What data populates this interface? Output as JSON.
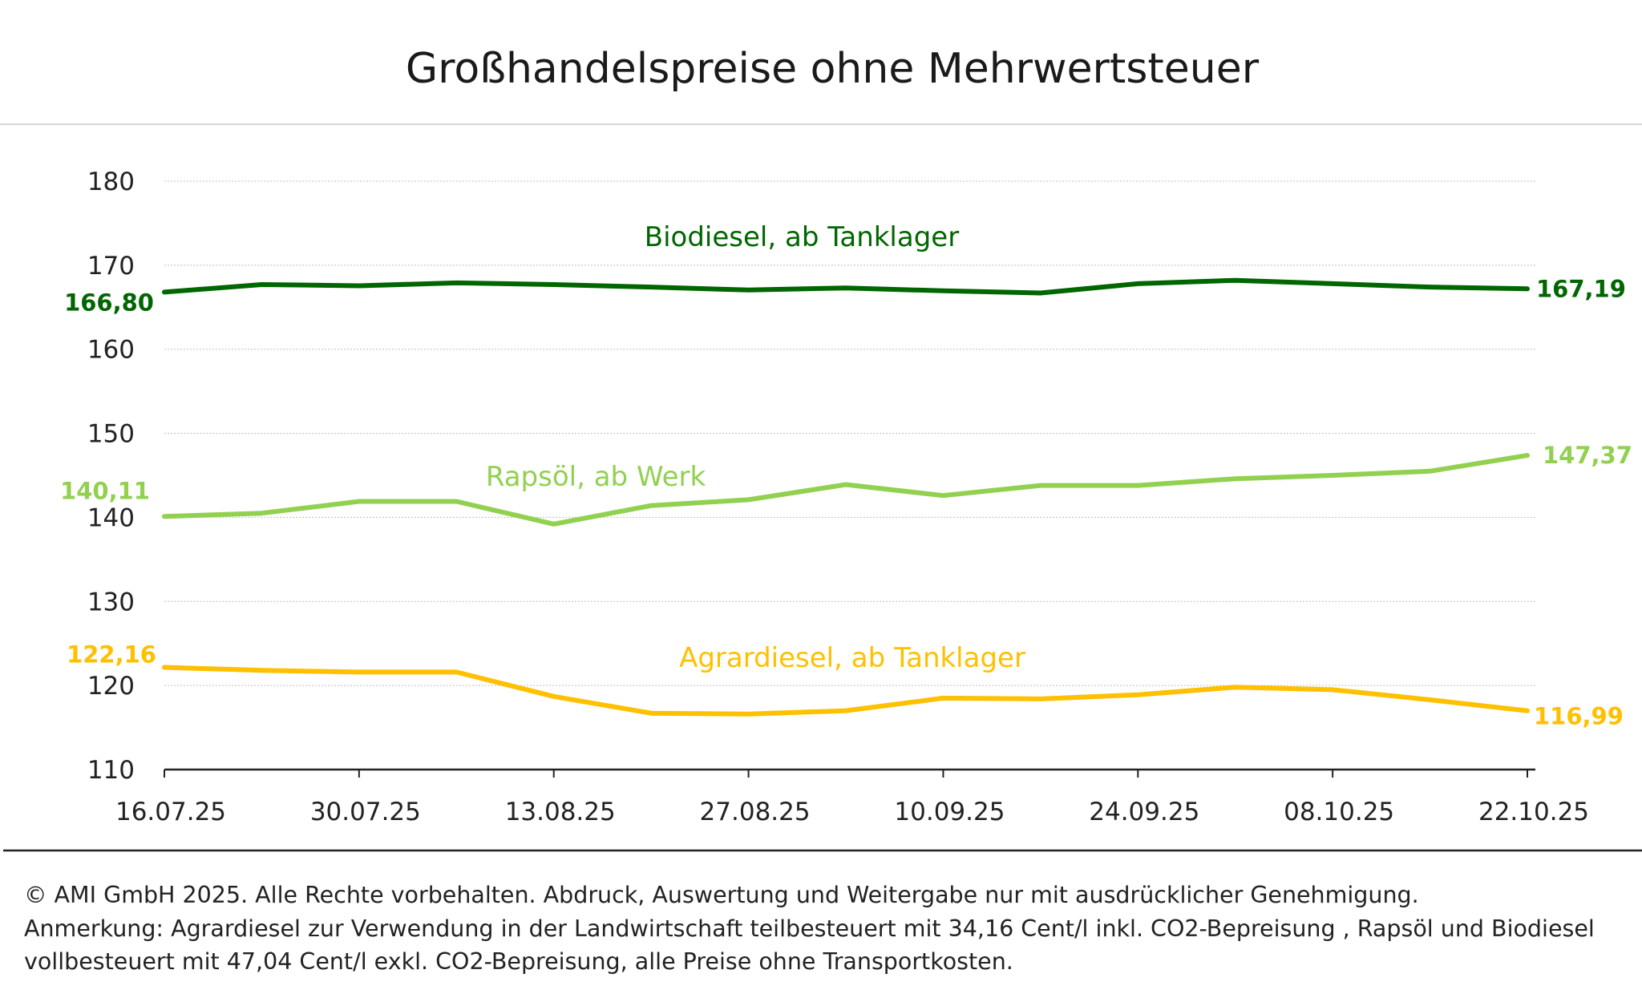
{
  "chart_data": {
    "type": "line",
    "title": "Großhandelspreise ohne Mehrwertsteuer",
    "xlabel": "",
    "ylabel": "",
    "ylim": [
      110,
      180
    ],
    "yticks": [
      "110",
      "120",
      "130",
      "140",
      "150",
      "160",
      "170",
      "180"
    ],
    "grid": true,
    "x": [
      "16.07.25",
      "23.07.25",
      "30.07.25",
      "06.08.25",
      "13.08.25",
      "20.08.25",
      "27.08.25",
      "03.09.25",
      "10.09.25",
      "17.09.25",
      "24.09.25",
      "01.10.25",
      "08.10.25",
      "15.10.25",
      "22.10.25"
    ],
    "xtick_labels": [
      "16.07.25",
      "30.07.25",
      "13.08.25",
      "27.08.25",
      "10.09.25",
      "24.09.25",
      "08.10.25",
      "22.10.25"
    ],
    "series": [
      {
        "name": "Biodiesel, ab Tanklager",
        "color": "#006600",
        "start_label": "166,80",
        "end_label": "167,19",
        "values": [
          166.8,
          167.7,
          167.55,
          167.9,
          167.7,
          167.4,
          167.05,
          167.3,
          166.95,
          166.7,
          167.8,
          168.2,
          167.8,
          167.4,
          167.19
        ]
      },
      {
        "name": "Rapsöl, ab Werk",
        "color": "#92d050",
        "start_label": "140,11",
        "end_label": "147,37",
        "values": [
          140.11,
          140.5,
          141.9,
          141.9,
          139.2,
          141.4,
          142.1,
          143.9,
          142.6,
          143.8,
          143.8,
          144.6,
          145.0,
          145.5,
          147.37
        ]
      },
      {
        "name": "Agrardiesel, ab Tanklager",
        "color": "#ffc000",
        "start_label": "122,16",
        "end_label": "116,99",
        "values": [
          122.16,
          121.8,
          121.6,
          121.6,
          118.7,
          116.7,
          116.6,
          117.0,
          118.5,
          118.4,
          118.9,
          119.8,
          119.5,
          118.3,
          116.99
        ]
      }
    ]
  },
  "footnote": {
    "line1": "© AMI GmbH 2025.  Alle Rechte vorbehalten.  Abdruck, Auswertung und Weitergabe nur mit ausdrücklicher Genehmigung.",
    "line2": "Anmerkung: Agrardiesel zur Verwendung in der Landwirtschaft teilbesteuert mit 34,16 Cent/l inkl. CO2-Bepreisung , Rapsöl und Biodiesel",
    "line3": "vollbesteuert mit 47,04 Cent/l exkl. CO2-Bepreisung, alle Preise ohne Transportkosten."
  }
}
